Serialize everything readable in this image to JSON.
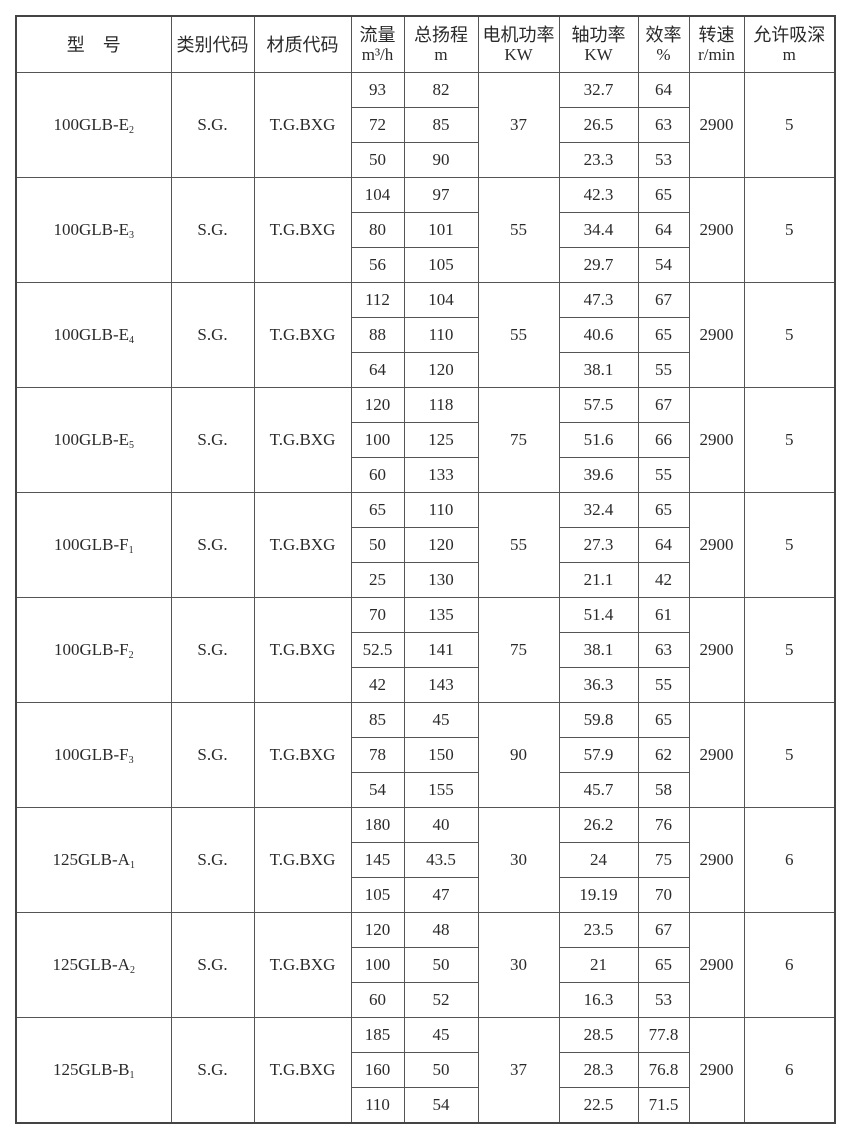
{
  "headers": [
    {
      "line1": "型　号",
      "line2": ""
    },
    {
      "line1": "类别代码",
      "line2": ""
    },
    {
      "line1": "材质代码",
      "line2": ""
    },
    {
      "line1": "流量",
      "line2": "m³/h"
    },
    {
      "line1": "总扬程",
      "line2": "m"
    },
    {
      "line1": "电机功率",
      "line2": "KW"
    },
    {
      "line1": "轴功率",
      "line2": "KW"
    },
    {
      "line1": "效率",
      "line2": "%"
    },
    {
      "line1": "转速",
      "line2": "r/min"
    },
    {
      "line1": "允许吸深",
      "line2": "m"
    }
  ],
  "groups": [
    {
      "model": "100GLB-E",
      "sub": "2",
      "category": "S.G.",
      "material": "T.G.BXG",
      "motor_kw": "37",
      "speed": "2900",
      "suction": "5",
      "rows": [
        [
          "93",
          "82",
          "32.7",
          "64"
        ],
        [
          "72",
          "85",
          "26.5",
          "63"
        ],
        [
          "50",
          "90",
          "23.3",
          "53"
        ]
      ]
    },
    {
      "model": "100GLB-E",
      "sub": "3",
      "category": "S.G.",
      "material": "T.G.BXG",
      "motor_kw": "55",
      "speed": "2900",
      "suction": "5",
      "rows": [
        [
          "104",
          "97",
          "42.3",
          "65"
        ],
        [
          "80",
          "101",
          "34.4",
          "64"
        ],
        [
          "56",
          "105",
          "29.7",
          "54"
        ]
      ]
    },
    {
      "model": "100GLB-E",
      "sub": "4",
      "category": "S.G.",
      "material": "T.G.BXG",
      "motor_kw": "55",
      "speed": "2900",
      "suction": "5",
      "rows": [
        [
          "112",
          "104",
          "47.3",
          "67"
        ],
        [
          "88",
          "110",
          "40.6",
          "65"
        ],
        [
          "64",
          "120",
          "38.1",
          "55"
        ]
      ]
    },
    {
      "model": "100GLB-E",
      "sub": "5",
      "category": "S.G.",
      "material": "T.G.BXG",
      "motor_kw": "75",
      "speed": "2900",
      "suction": "5",
      "rows": [
        [
          "120",
          "118",
          "57.5",
          "67"
        ],
        [
          "100",
          "125",
          "51.6",
          "66"
        ],
        [
          "60",
          "133",
          "39.6",
          "55"
        ]
      ]
    },
    {
      "model": "100GLB-F",
      "sub": "1",
      "category": "S.G.",
      "material": "T.G.BXG",
      "motor_kw": "55",
      "speed": "2900",
      "suction": "5",
      "rows": [
        [
          "65",
          "110",
          "32.4",
          "65"
        ],
        [
          "50",
          "120",
          "27.3",
          "64"
        ],
        [
          "25",
          "130",
          "21.1",
          "42"
        ]
      ]
    },
    {
      "model": "100GLB-F",
      "sub": "2",
      "category": "S.G.",
      "material": "T.G.BXG",
      "motor_kw": "75",
      "speed": "2900",
      "suction": "5",
      "rows": [
        [
          "70",
          "135",
          "51.4",
          "61"
        ],
        [
          "52.5",
          "141",
          "38.1",
          "63"
        ],
        [
          "42",
          "143",
          "36.3",
          "55"
        ]
      ]
    },
    {
      "model": "100GLB-F",
      "sub": "3",
      "category": "S.G.",
      "material": "T.G.BXG",
      "motor_kw": "90",
      "speed": "2900",
      "suction": "5",
      "rows": [
        [
          "85",
          "45",
          "59.8",
          "65"
        ],
        [
          "78",
          "150",
          "57.9",
          "62"
        ],
        [
          "54",
          "155",
          "45.7",
          "58"
        ]
      ]
    },
    {
      "model": "125GLB-A",
      "sub": "1",
      "category": "S.G.",
      "material": "T.G.BXG",
      "motor_kw": "30",
      "speed": "2900",
      "suction": "6",
      "rows": [
        [
          "180",
          "40",
          "26.2",
          "76"
        ],
        [
          "145",
          "43.5",
          "24",
          "75"
        ],
        [
          "105",
          "47",
          "19.19",
          "70"
        ]
      ]
    },
    {
      "model": "125GLB-A",
      "sub": "2",
      "category": "S.G.",
      "material": "T.G.BXG",
      "motor_kw": "30",
      "speed": "2900",
      "suction": "6",
      "rows": [
        [
          "120",
          "48",
          "23.5",
          "67"
        ],
        [
          "100",
          "50",
          "21",
          "65"
        ],
        [
          "60",
          "52",
          "16.3",
          "53"
        ]
      ]
    },
    {
      "model": "125GLB-B",
      "sub": "1",
      "category": "S.G.",
      "material": "T.G.BXG",
      "motor_kw": "37",
      "speed": "2900",
      "suction": "6",
      "rows": [
        [
          "185",
          "45",
          "28.5",
          "77.8"
        ],
        [
          "160",
          "50",
          "28.3",
          "76.8"
        ],
        [
          "110",
          "54",
          "22.5",
          "71.5"
        ]
      ]
    }
  ]
}
